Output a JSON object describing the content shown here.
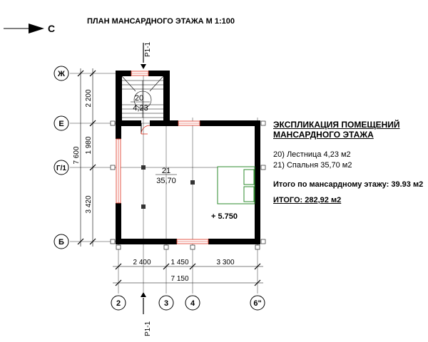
{
  "title": "ПЛАН МАНСАРДНОГО ЭТАЖА М 1:100",
  "north_arrow": {
    "label": "С"
  },
  "section_marks": {
    "top": "Р1-1",
    "bottom": "Р1-1"
  },
  "row_axes": [
    "Ж",
    "Е",
    "Г/1",
    "Б"
  ],
  "col_axes": [
    "2",
    "3",
    "4",
    "6\""
  ],
  "left_dims": {
    "segments": [
      "2 200",
      "1 980",
      "3 420"
    ],
    "total": "7 600"
  },
  "bottom_dims": {
    "segments": [
      "2 400",
      "1 450",
      "3 300"
    ],
    "total": "7 150"
  },
  "rooms": [
    {
      "number": "20",
      "area": "4,23"
    },
    {
      "number": "21",
      "area": "35,70"
    }
  ],
  "level_mark": "+ 5.750",
  "explication": {
    "heading_line1": "ЭКСПЛИКАЦИЯ ПОМЕЩЕНИЙ",
    "heading_line2": "МАНСАРДНОГО ЭТАЖА",
    "rows": [
      "20) Лестница 4,23 м2",
      "21) Спальня 35,70 м2"
    ],
    "floor_total": "Итого по мансардному этажу: 39.93 м2",
    "grand_total": "ИТОГО: 282,92 м2"
  },
  "colors": {
    "walls": "#000000",
    "windows": "#e0311f",
    "bed": "#2e8b2e"
  }
}
